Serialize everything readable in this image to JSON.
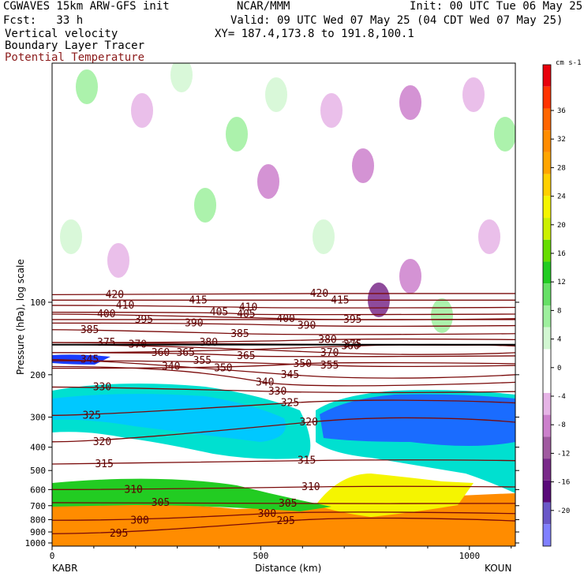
{
  "header": {
    "model": "CGWAVES 15km ARW-GFS init",
    "org": "NCAR/MMM",
    "init": "Init: 00 UTC Tue 06 May 25",
    "fcst": "Fcst:   33 h",
    "valid": "Valid: 09 UTC Wed 07 May 25 (04 CDT Wed 07 May 25)",
    "field1": "Vertical velocity",
    "field2": "Boundary Layer Tracer",
    "field3": "Potential Temperature",
    "xy": "XY= 187.4,173.8 to 191.8,100.1",
    "field3_color": "#8b1a1a"
  },
  "chart_data": {
    "type": "heatmap",
    "title": "Vertical velocity / Boundary Layer Tracer / Potential Temperature cross-section",
    "xlabel": "Distance (km)",
    "ylabel": "Pressure (hPa), log scale",
    "x_endpoints": {
      "left": "KABR",
      "right": "KOUN"
    },
    "xlim": [
      0,
      1110
    ],
    "x_ticks": [
      0,
      500,
      1000
    ],
    "y_ticks": [
      100,
      200,
      300,
      400,
      500,
      600,
      700,
      800,
      900,
      1000
    ],
    "y_scale": "log",
    "colorbar": {
      "units": "cm s-1",
      "labels": [
        "36",
        "32",
        "28",
        "24",
        "20",
        "16",
        "12",
        "8",
        "4",
        "0",
        "-4",
        "-8",
        "-12",
        "-16",
        "-20"
      ],
      "colors": [
        "#e8000b",
        "#ff3300",
        "#ff6600",
        "#ff8c00",
        "#ffa500",
        "#ffd000",
        "#f5f500",
        "#ccf000",
        "#66dd00",
        "#22cc22",
        "#66e066",
        "#9ef09e",
        "#d2f7d2",
        "#ffffff",
        "#ffffff",
        "#e6b4e6",
        "#cc80cc",
        "#a05aa0",
        "#7a2a8a",
        "#5a0a7a",
        "#6a58c8",
        "#8080ff"
      ]
    },
    "theta_isentropes": [
      {
        "value": 295,
        "label_positions": [
          [
            160,
            915
          ],
          [
            560,
            810
          ]
        ]
      },
      {
        "value": 300,
        "label_positions": [
          [
            210,
            805
          ],
          [
            515,
            755
          ]
        ]
      },
      {
        "value": 305,
        "label_positions": [
          [
            260,
            680
          ],
          [
            565,
            685
          ]
        ]
      },
      {
        "value": 310,
        "label_positions": [
          [
            195,
            600
          ],
          [
            620,
            585
          ]
        ]
      },
      {
        "value": 315,
        "label_positions": [
          [
            125,
            470
          ],
          [
            610,
            455
          ]
        ]
      },
      {
        "value": 320,
        "label_positions": [
          [
            120,
            380
          ],
          [
            615,
            315
          ]
        ]
      },
      {
        "value": 325,
        "label_positions": [
          [
            95,
            295
          ],
          [
            570,
            262
          ]
        ]
      },
      {
        "value": 330,
        "label_positions": [
          [
            120,
            225
          ],
          [
            540,
            235
          ]
        ]
      },
      {
        "value": 340,
        "label_positions": [
          [
            285,
            185
          ],
          [
            510,
            215
          ]
        ]
      },
      {
        "value": 345,
        "label_positions": [
          [
            90,
            173
          ],
          [
            570,
            200
          ]
        ]
      },
      {
        "value": 350,
        "label_positions": [
          [
            410,
            188
          ],
          [
            600,
            180
          ]
        ]
      },
      {
        "value": 355,
        "label_positions": [
          [
            360,
            175
          ],
          [
            665,
            183
          ]
        ]
      },
      {
        "value": 360,
        "label_positions": [
          [
            260,
            162
          ],
          [
            715,
            152
          ]
        ]
      },
      {
        "value": 365,
        "label_positions": [
          [
            320,
            162
          ],
          [
            465,
            167
          ]
        ]
      },
      {
        "value": 370,
        "label_positions": [
          [
            205,
            150
          ],
          [
            665,
            162
          ]
        ]
      },
      {
        "value": 375,
        "label_positions": [
          [
            130,
            147
          ],
          [
            720,
            150
          ]
        ]
      },
      {
        "value": 380,
        "label_positions": [
          [
            375,
            147
          ],
          [
            660,
            143
          ]
        ]
      },
      {
        "value": 385,
        "label_positions": [
          [
            90,
            130
          ],
          [
            450,
            135
          ]
        ]
      },
      {
        "value": 390,
        "label_positions": [
          [
            340,
            122
          ],
          [
            610,
            125
          ]
        ]
      },
      {
        "value": 395,
        "label_positions": [
          [
            220,
            118
          ],
          [
            720,
            118
          ]
        ]
      },
      {
        "value": 400,
        "label_positions": [
          [
            130,
            112
          ],
          [
            560,
            117
          ]
        ]
      },
      {
        "value": 405,
        "label_positions": [
          [
            400,
            110
          ],
          [
            465,
            112
          ]
        ]
      },
      {
        "value": 410,
        "label_positions": [
          [
            175,
            103
          ],
          [
            470,
            105
          ]
        ]
      },
      {
        "value": 415,
        "label_positions": [
          [
            350,
            98
          ],
          [
            690,
            98
          ]
        ]
      },
      {
        "value": 420,
        "label_positions": [
          [
            150,
            93
          ],
          [
            640,
            92
          ]
        ]
      }
    ]
  }
}
